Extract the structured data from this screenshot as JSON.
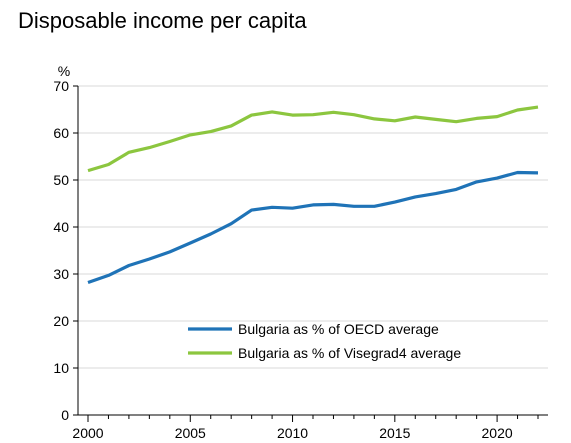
{
  "chart_data": {
    "type": "line",
    "title": "Disposable income per capita",
    "ylabel": "%",
    "xlabel": "",
    "xlim": [
      2000,
      2022
    ],
    "ylim": [
      0,
      70
    ],
    "x_ticks": [
      2000,
      2005,
      2010,
      2015,
      2020
    ],
    "y_ticks": [
      0,
      10,
      20,
      30,
      40,
      50,
      60,
      70
    ],
    "grid": true,
    "legend_position": "bottom-center",
    "x": [
      2000,
      2001,
      2002,
      2003,
      2004,
      2005,
      2006,
      2007,
      2008,
      2009,
      2010,
      2011,
      2012,
      2013,
      2014,
      2015,
      2016,
      2017,
      2018,
      2019,
      2020,
      2021,
      2022
    ],
    "series": [
      {
        "name": "Bulgaria as % of OECD average",
        "color": "#1f73b7",
        "values": [
          28.2,
          29.7,
          31.8,
          33.2,
          34.7,
          36.6,
          38.5,
          40.7,
          43.6,
          44.2,
          44.0,
          44.7,
          44.8,
          44.4,
          44.4,
          45.3,
          46.4,
          47.1,
          48.0,
          49.6,
          50.4,
          51.6,
          51.5
        ]
      },
      {
        "name": "Bulgaria as % of Visegrad4 average",
        "color": "#8cc63f",
        "values": [
          52.0,
          53.3,
          55.9,
          56.9,
          58.2,
          59.6,
          60.3,
          61.5,
          63.8,
          64.5,
          63.8,
          63.9,
          64.4,
          63.9,
          63.0,
          62.6,
          63.4,
          62.9,
          62.4,
          63.1,
          63.5,
          64.9,
          65.5
        ]
      }
    ]
  }
}
